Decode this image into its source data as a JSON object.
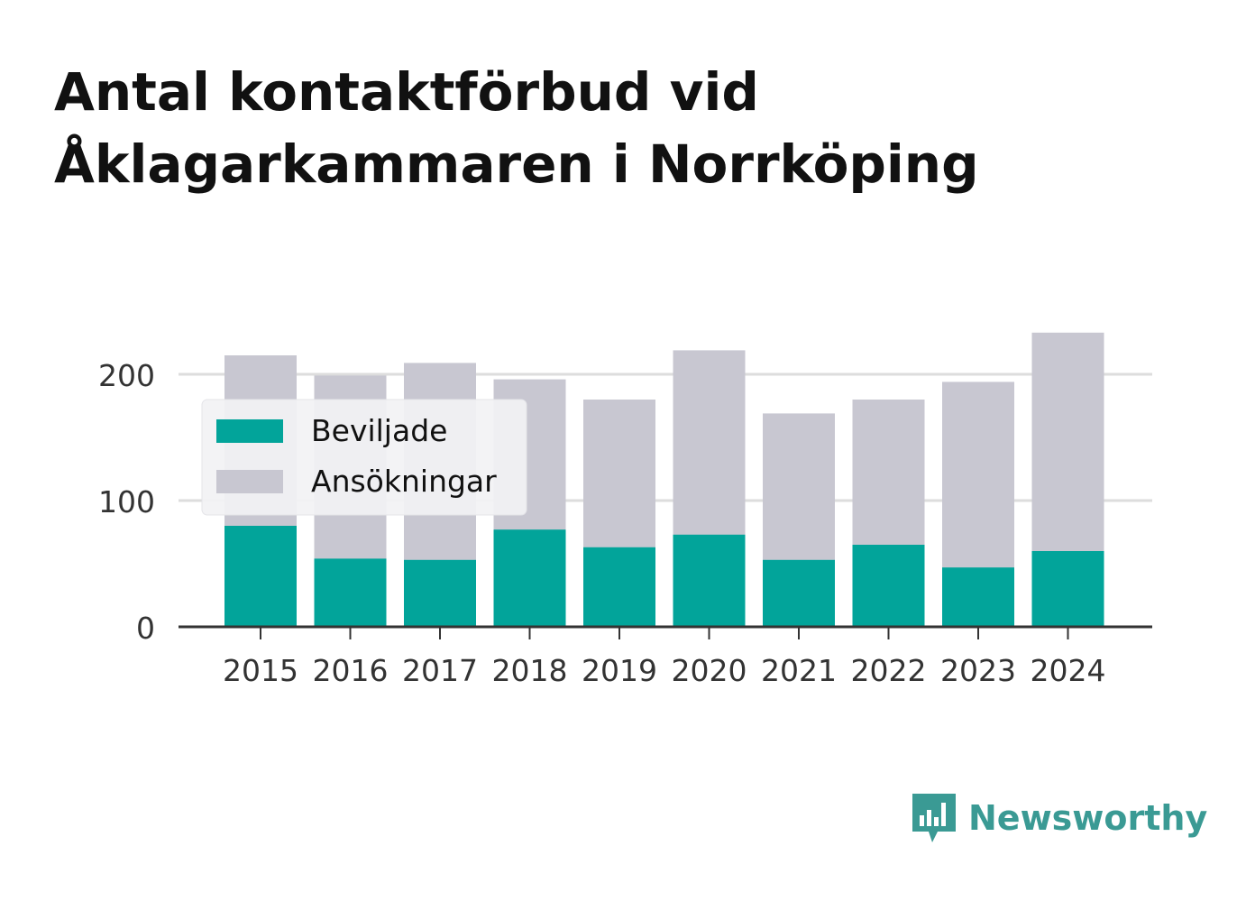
{
  "chart_data": {
    "type": "bar",
    "stacked": "overlay",
    "title_lines": [
      "Antal kontaktförbud vid",
      "Åklagarkammaren i Norrköping"
    ],
    "categories": [
      "2015",
      "2016",
      "2017",
      "2018",
      "2019",
      "2020",
      "2021",
      "2022",
      "2023",
      "2024"
    ],
    "series": [
      {
        "name": "Ansökningar",
        "color": "#c8c7d1",
        "values": [
          215,
          199,
          209,
          196,
          180,
          219,
          169,
          180,
          194,
          233
        ]
      },
      {
        "name": "Beviljade",
        "color": "#02a49a",
        "values": [
          80,
          54,
          53,
          77,
          63,
          73,
          53,
          65,
          47,
          60
        ]
      }
    ],
    "legend_order": [
      "Beviljade",
      "Ansökningar"
    ],
    "legend_position": "upper-left",
    "yticks": [
      0,
      100,
      200
    ],
    "ylim": [
      0,
      240
    ],
    "grid": true
  },
  "brand": {
    "name": "Newsworthy",
    "color": "#3a9a94",
    "icon": "newsworthy-logo-icon"
  }
}
